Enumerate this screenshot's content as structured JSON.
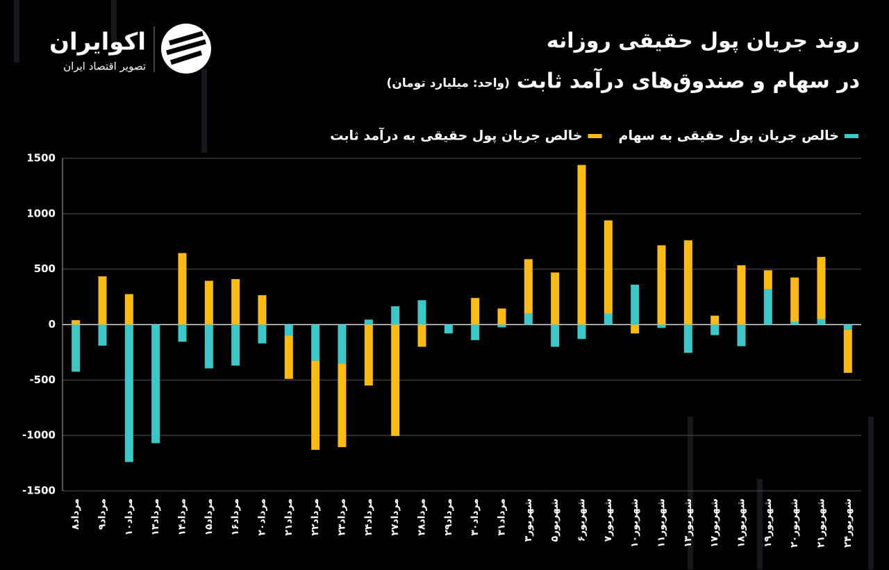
{
  "logo": {
    "name": "اکوایران",
    "tagline": "تصویر اقتصاد ایران"
  },
  "chart_data": {
    "type": "bar",
    "stacked": true,
    "title": "روند جریان پول حقیقی روزانه",
    "subtitle": "در سهام و صندوق‌های درآمد ثابت",
    "unit_note": "(واحد: میلیارد تومان)",
    "categories": [
      "مرداد۸",
      "مرداد۹",
      "مرداد۱۰",
      "مرداد۱۳",
      "مرداد۱۴",
      "مرداد۱۵",
      "مرداد۱۶",
      "مرداد۲۰",
      "مرداد۲۱",
      "مرداد۲۲",
      "مرداد۲۳",
      "مرداد۲۴",
      "مرداد۲۷",
      "مرداد۲۸",
      "مرداد۲۹",
      "مرداد۳۰",
      "مرداد۳۱",
      "شهریور۳",
      "شهریور۵",
      "شهریور۶",
      "شهریور۷",
      "شهریور۱۰",
      "شهریور۱۱",
      "شهریور۱۳",
      "شهریور۱۷",
      "شهریور۱۸",
      "شهریور۱۹",
      "شهریور۲۰",
      "شهریور۲۱",
      "شهریور۲۴"
    ],
    "series": [
      {
        "name": "خالص جریان پول حقیقی به سهام",
        "color": "#3cc8c8",
        "values": [
          -425,
          -190,
          -1240,
          -1070,
          -155,
          -395,
          -370,
          -170,
          -100,
          -325,
          -350,
          45,
          165,
          220,
          -80,
          -140,
          -25,
          100,
          -200,
          -130,
          100,
          360,
          -30,
          -255,
          -95,
          -195,
          320,
          25,
          50,
          -45
        ]
      },
      {
        "name": "خالص جریان پول حقیقی به درآمد ثابت",
        "color": "#fbbb12",
        "values": [
          40,
          435,
          275,
          0,
          645,
          395,
          410,
          265,
          -390,
          -805,
          -755,
          -550,
          -1005,
          -200,
          0,
          240,
          145,
          490,
          470,
          1440,
          840,
          -80,
          715,
          760,
          80,
          535,
          170,
          400,
          560,
          -390
        ]
      }
    ],
    "ylim": [
      -1500,
      1500
    ],
    "yticks": [
      -1500,
      -1000,
      -500,
      0,
      500,
      1000,
      1500
    ],
    "grid": true,
    "legend": "top-right"
  }
}
